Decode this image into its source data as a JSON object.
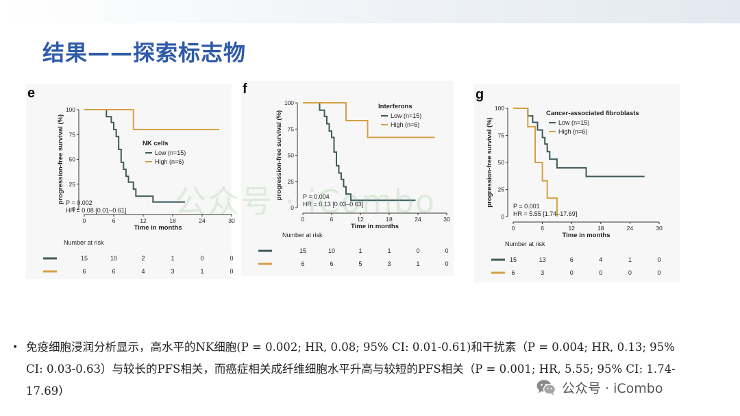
{
  "slide": {
    "title": "结果——探索标志物"
  },
  "watermark": {
    "text": "公众号 · iCombo"
  },
  "account": {
    "icon": "wechat-icon",
    "label": "公众号 · iCombo"
  },
  "footnote": {
    "bullet": "•",
    "text": "免疫细胞浸润分析显示，高水平的NK细胞(P = 0.002; HR, 0.08; 95% CI: 0.01-0.61)和干扰素（P = 0.004; HR, 0.13; 95% CI: 0.03-0.63）与较长的PFS相关，而癌症相关成纤维细胞水平升高与较短的PFS相关（P = 0.001; HR, 5.55; 95% CI: 1.74-17.69）"
  },
  "colors": {
    "low": "#3d5a5a",
    "high": "#d4a045",
    "title": "#2e5aa8"
  },
  "chart_data": [
    {
      "type": "line",
      "panel": "e",
      "title": "NK cells",
      "xlabel": "Time in months",
      "ylabel": "progression-free survival (%)",
      "xlim": [
        0,
        30
      ],
      "ylim": [
        0,
        100
      ],
      "xticks": [
        0,
        6,
        12,
        18,
        24,
        30
      ],
      "yticks": [
        0,
        25,
        50,
        75,
        100
      ],
      "legend_position": "middle-right",
      "series": [
        {
          "name": "Low (n=15)",
          "color": "#3d5a5a",
          "x": [
            0,
            4.5,
            5.5,
            6,
            6.5,
            7,
            7.5,
            8,
            8.5,
            9,
            10,
            10.5,
            14,
            20.5
          ],
          "y": [
            100,
            93,
            87,
            80,
            73,
            60,
            47,
            40,
            33,
            27,
            20,
            13,
            7,
            7
          ]
        },
        {
          "name": "High (n=6)",
          "color": "#d4a045",
          "x": [
            0,
            10,
            27.5
          ],
          "y": [
            100,
            80,
            80
          ]
        }
      ],
      "annotations": [
        "P = 0.002",
        "HR = 0.08 [0.01–0.61]"
      ],
      "risk_table": {
        "title": "Number at risk",
        "times": [
          0,
          6,
          12,
          18,
          24,
          30
        ],
        "low": [
          "15",
          "10",
          "2",
          "1",
          "0",
          "0"
        ],
        "high": [
          "6",
          "6",
          "4",
          "3",
          "1",
          "0"
        ]
      }
    },
    {
      "type": "line",
      "panel": "f",
      "title": "Interferons",
      "xlabel": "Time in months",
      "ylabel": "progression-free survival (%)",
      "xlim": [
        0,
        30
      ],
      "ylim": [
        0,
        100
      ],
      "xticks": [
        0,
        6,
        12,
        18,
        24,
        30
      ],
      "yticks": [
        0,
        25,
        50,
        75,
        100
      ],
      "legend_position": "top-right",
      "series": [
        {
          "name": "Low (n=15)",
          "color": "#3d5a5a",
          "x": [
            0,
            3.5,
            4.5,
            5,
            5.5,
            6,
            6.5,
            7,
            7.5,
            8,
            8.5,
            9,
            10,
            23.5
          ],
          "y": [
            100,
            93,
            87,
            80,
            73,
            67,
            53,
            40,
            33,
            27,
            20,
            13,
            7,
            7
          ]
        },
        {
          "name": "High (n=6)",
          "color": "#d4a045",
          "x": [
            0,
            9,
            13.5,
            27.5
          ],
          "y": [
            100,
            83,
            67,
            67
          ]
        }
      ],
      "annotations": [
        "P = 0.004",
        "HR = 0.13 [0.03–0.63]"
      ],
      "risk_table": {
        "title": "Number at risk",
        "times": [
          0,
          6,
          12,
          18,
          24,
          30
        ],
        "low": [
          "15",
          "10",
          "1",
          "1",
          "0",
          "0"
        ],
        "high": [
          "6",
          "6",
          "5",
          "3",
          "1",
          "0"
        ]
      }
    },
    {
      "type": "line",
      "panel": "g",
      "title": "Cancer-associated fibroblasts",
      "xlabel": "Time in months",
      "ylabel": "progression-free survival (%)",
      "xlim": [
        0,
        30
      ],
      "ylim": [
        0,
        100
      ],
      "xticks": [
        0,
        6,
        12,
        18,
        24,
        30
      ],
      "yticks": [
        0,
        25,
        50,
        75,
        100
      ],
      "legend_position": "top-right",
      "series": [
        {
          "name": "Low (n=15)",
          "color": "#3d5a5a",
          "x": [
            0,
            3,
            4,
            5,
            6,
            6.5,
            7,
            7.5,
            9,
            11,
            15,
            27
          ],
          "y": [
            100,
            93,
            87,
            80,
            73,
            67,
            60,
            53,
            45,
            45,
            37,
            37
          ]
        },
        {
          "name": "High (n=6)",
          "color": "#d4a045",
          "x": [
            0,
            3,
            4.5,
            6,
            7,
            9
          ],
          "y": [
            100,
            83,
            50,
            33,
            17,
            0
          ]
        }
      ],
      "annotations": [
        "P = 0.001",
        "HR = 5.55 [1.74–17.69]"
      ],
      "risk_table": {
        "title": "Number at risk",
        "times": [
          0,
          6,
          12,
          18,
          24,
          30
        ],
        "low": [
          "15",
          "13",
          "6",
          "4",
          "1",
          "0"
        ],
        "high": [
          "6",
          "3",
          "0",
          "0",
          "0",
          "0"
        ]
      }
    }
  ]
}
